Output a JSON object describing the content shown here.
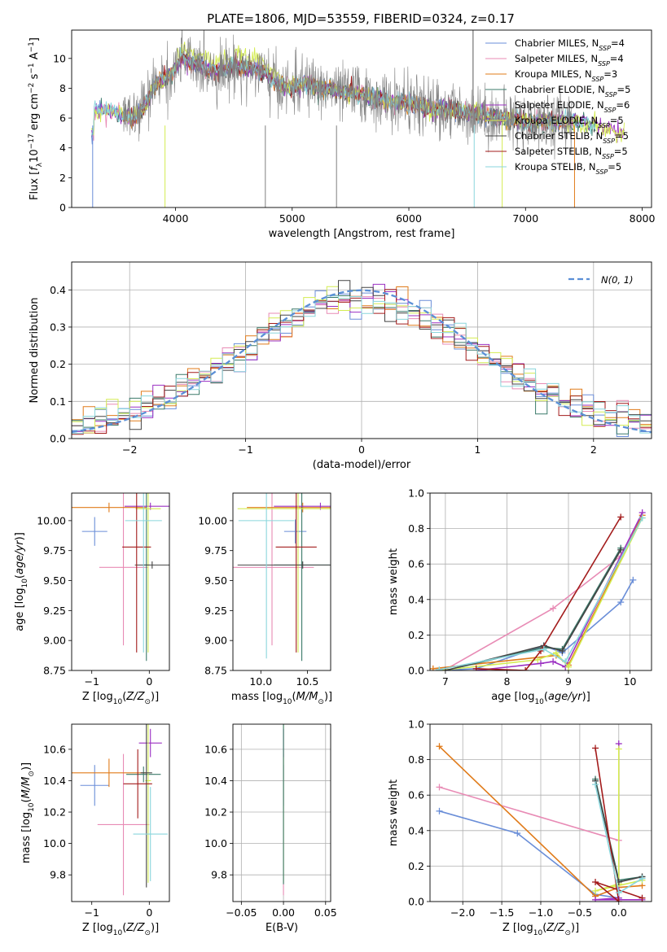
{
  "figure_title": "PLATE=1806, MJD=53559, FIBERID=0324, z=0.17",
  "chart_data": [
    {
      "id": "spectrum",
      "type": "line",
      "title": "PLATE=1806, MJD=53559, FIBERID=0324, z=0.17",
      "xlabel": "wavelength [Angstrom, rest frame]",
      "ylabel": "Flux [f_λ 10^-17 erg cm^-2 s^-1 A^-1]",
      "xlim": [
        3110,
        8080
      ],
      "ylim": [
        0,
        11.9
      ],
      "xticks": [
        4000,
        5000,
        6000,
        7000,
        8000
      ],
      "yticks": [
        0,
        2,
        4,
        6,
        8,
        10
      ],
      "grid": false,
      "legend_position": "top-right",
      "data_continuum": [
        [
          3300,
          6.6
        ],
        [
          3450,
          6.5
        ],
        [
          3550,
          6.2
        ],
        [
          3650,
          6.0
        ],
        [
          3750,
          7.0
        ],
        [
          3850,
          8.5
        ],
        [
          3950,
          8.8
        ],
        [
          4050,
          10.0
        ],
        [
          4150,
          9.6
        ],
        [
          4250,
          9.4
        ],
        [
          4350,
          9.1
        ],
        [
          4450,
          9.3
        ],
        [
          4550,
          9.5
        ],
        [
          4650,
          9.3
        ],
        [
          4750,
          9.1
        ],
        [
          4850,
          8.4
        ],
        [
          4950,
          8.0
        ],
        [
          5050,
          8.2
        ],
        [
          5150,
          8.3
        ],
        [
          5250,
          8.0
        ],
        [
          5350,
          7.9
        ],
        [
          5450,
          7.7
        ],
        [
          5550,
          7.7
        ],
        [
          5650,
          7.4
        ],
        [
          5750,
          7.3
        ],
        [
          5850,
          7.0
        ],
        [
          5950,
          7.1
        ],
        [
          6050,
          6.9
        ],
        [
          6150,
          6.7
        ],
        [
          6250,
          6.6
        ],
        [
          6350,
          6.5
        ],
        [
          6450,
          6.4
        ],
        [
          6550,
          6.4
        ],
        [
          6650,
          6.2
        ],
        [
          6750,
          6.0
        ],
        [
          6850,
          6.0
        ],
        [
          6950,
          5.8
        ],
        [
          7050,
          5.7
        ],
        [
          7150,
          5.8
        ],
        [
          7250,
          5.8
        ],
        [
          7400,
          5.8
        ],
        [
          7600,
          5.6
        ],
        [
          7800,
          4.9
        ]
      ],
      "series": [
        {
          "name": "Chabrier MILES, N_SSP=4",
          "label_main": "Chabrier MILES, N",
          "label_sub": "SSP",
          "label_tail": "=4",
          "color": "#6a8ed8"
        },
        {
          "name": "Salpeter MILES, N_SSP=4",
          "label_main": "Salpeter MILES, N",
          "label_sub": "SSP",
          "label_tail": "=4",
          "color": "#e88bb5"
        },
        {
          "name": "Kroupa MILES, N_SSP=3",
          "label_main": "Kroupa MILES, N",
          "label_sub": "SSP",
          "label_tail": "=3",
          "color": "#e07b1a"
        },
        {
          "name": "Chabrier ELODIE, N_SSP=5",
          "label_main": "Chabrier ELODIE, N",
          "label_sub": "SSP",
          "label_tail": "=5",
          "color": "#3b7a6a"
        },
        {
          "name": "Salpeter ELODIE, N_SSP=6",
          "label_main": "Salpeter ELODIE, N",
          "label_sub": "SSP",
          "label_tail": "=6",
          "color": "#9b30c2"
        },
        {
          "name": "Kroupa ELODIE, N_SSP=5",
          "label_main": "Kroupa ELODIE, N",
          "label_sub": "SSP",
          "label_tail": "=5",
          "color": "#d4ec52"
        },
        {
          "name": "Chabrier STELIB, N_SSP=5",
          "label_main": "Chabrier STELIB, N",
          "label_sub": "SSP",
          "label_tail": "=5",
          "color": "#444444"
        },
        {
          "name": "Salpeter STELIB, N_SSP=5",
          "label_main": "Salpeter STELIB, N",
          "label_sub": "SSP",
          "label_tail": "=5",
          "color": "#a31c1c"
        },
        {
          "name": "Kroupa STELIB, N_SSP=5",
          "label_main": "Kroupa STELIB, N",
          "label_sub": "SSP",
          "label_tail": "=5",
          "color": "#8ad6dc"
        }
      ]
    },
    {
      "id": "residuals",
      "type": "line",
      "xlabel": "(data-model)/error",
      "ylabel": "Normed distribution",
      "xlim": [
        -2.5,
        2.5
      ],
      "ylim": [
        0,
        0.475
      ],
      "xticks": [
        -2,
        -1,
        0,
        1,
        2
      ],
      "yticks": [
        0.0,
        0.1,
        0.2,
        0.3,
        0.4
      ],
      "grid": true,
      "legend_position": "top-right",
      "legend_label": "N(0, 1)",
      "bin_width": 0.1,
      "hist_colors": [
        "#6a8ed8",
        "#e88bb5",
        "#e07b1a",
        "#3b7a6a",
        "#9b30c2",
        "#d4ec52",
        "#444444",
        "#a31c1c",
        "#8ad6dc"
      ]
    },
    {
      "id": "age_vs_Z",
      "type": "scatter",
      "xlabel": "Z [log10(Z/Z⊙)]",
      "ylabel": "age [log10(age/yr)]",
      "xlim": [
        -1.35,
        0.35
      ],
      "ylim": [
        8.75,
        10.23
      ],
      "xticks": [
        -1,
        0
      ],
      "yticks": [
        8.75,
        9.0,
        9.25,
        9.5,
        9.75,
        10.0
      ],
      "grid": false,
      "points": [
        {
          "c": 0,
          "x": -0.95,
          "y": 9.91,
          "xerr": 0.22,
          "yerr": 0.12
        },
        {
          "c": 1,
          "x": -0.45,
          "y": 9.61,
          "xerr": 0.42,
          "yerr": 0.65
        },
        {
          "c": 2,
          "x": -0.7,
          "y": 10.11,
          "xerr": 0.65,
          "yerr": 0.04
        },
        {
          "c": 3,
          "x": -0.05,
          "y": 9.63,
          "xerr": 0.05,
          "yerr": 0.8
        },
        {
          "c": 4,
          "x": 0.02,
          "y": 10.12,
          "xerr": 0.45,
          "yerr": 0.03
        },
        {
          "c": 5,
          "x": -0.02,
          "y": 10.1,
          "xerr": 0.22,
          "yerr": 1.2
        },
        {
          "c": 6,
          "x": 0.05,
          "y": 9.63,
          "xerr": 0.3,
          "yerr": 0.03
        },
        {
          "c": 7,
          "x": -0.22,
          "y": 9.78,
          "xerr": 0.25,
          "yerr": 0.88
        },
        {
          "c": 8,
          "x": -0.1,
          "y": 10.0,
          "xerr": 0.32,
          "yerr": 1.1
        }
      ]
    },
    {
      "id": "age_vs_mass",
      "type": "scatter",
      "xlabel": "mass [log10(M/M⊙)]",
      "ylabel": "",
      "xlim": [
        9.7,
        10.75
      ],
      "ylim": [
        8.75,
        10.23
      ],
      "xticks": [
        10.0,
        10.5
      ],
      "yticks": [
        8.75,
        9.0,
        9.25,
        9.5,
        9.75,
        10.0
      ],
      "grid": false,
      "points": [
        {
          "c": 0,
          "x": 10.37,
          "y": 9.91,
          "xerr": 0.12,
          "yerr": 0.1
        },
        {
          "c": 1,
          "x": 10.12,
          "y": 9.61,
          "xerr": 0.45,
          "yerr": 0.65
        },
        {
          "c": 2,
          "x": 10.45,
          "y": 10.11,
          "xerr": 0.6,
          "yerr": 0.04
        },
        {
          "c": 3,
          "x": 10.44,
          "y": 9.63,
          "xerr": 0.3,
          "yerr": 0.8
        },
        {
          "c": 4,
          "x": 10.64,
          "y": 10.12,
          "xerr": 0.5,
          "yerr": 0.03
        },
        {
          "c": 5,
          "x": 10.4,
          "y": 10.1,
          "xerr": 0.65,
          "yerr": 1.2
        },
        {
          "c": 6,
          "x": 10.45,
          "y": 9.63,
          "xerr": 0.7,
          "yerr": 0.03
        },
        {
          "c": 7,
          "x": 10.38,
          "y": 9.78,
          "xerr": 0.22,
          "yerr": 0.88
        },
        {
          "c": 8,
          "x": 10.06,
          "y": 10.0,
          "xerr": 0.3,
          "yerr": 1.15
        }
      ]
    },
    {
      "id": "weight_vs_age",
      "type": "line",
      "xlabel": "age [log10(age/yr)]",
      "ylabel": "mass weight",
      "xlim": [
        6.75,
        10.35
      ],
      "ylim": [
        0,
        1.0
      ],
      "xticks": [
        7,
        8,
        9,
        10
      ],
      "yticks": [
        0.0,
        0.2,
        0.4,
        0.6,
        0.8,
        1.0
      ],
      "grid": true,
      "series": [
        {
          "c": 0,
          "x": [
            6.9,
            7.5,
            8.6,
            8.9,
            9.85,
            10.05
          ],
          "y": [
            0.0,
            0.01,
            0.14,
            0.1,
            0.385,
            0.51
          ]
        },
        {
          "c": 1,
          "x": [
            7.0,
            8.75,
            9.85
          ],
          "y": [
            0.005,
            0.35,
            0.645
          ]
        },
        {
          "c": 2,
          "x": [
            6.8,
            8.8,
            9.0,
            10.2
          ],
          "y": [
            0.01,
            0.085,
            0.03,
            0.875
          ]
        },
        {
          "c": 3,
          "x": [
            7.0,
            8.6,
            8.9,
            9.85
          ],
          "y": [
            0.0,
            0.13,
            0.12,
            0.69
          ]
        },
        {
          "c": 4,
          "x": [
            7.5,
            8.55,
            8.75,
            8.95,
            10.2
          ],
          "y": [
            0.0,
            0.04,
            0.05,
            0.02,
            0.89
          ]
        },
        {
          "c": 5,
          "x": [
            6.9,
            8.5,
            8.8,
            9.0,
            10.2
          ],
          "y": [
            0.0,
            0.06,
            0.1,
            0.02,
            0.86
          ]
        },
        {
          "c": 6,
          "x": [
            7.0,
            8.6,
            8.9,
            9.85
          ],
          "y": [
            0.0,
            0.14,
            0.11,
            0.68
          ]
        },
        {
          "c": 7,
          "x": [
            7.5,
            8.3,
            8.55,
            9.85
          ],
          "y": [
            0.01,
            0.0,
            0.11,
            0.865
          ]
        },
        {
          "c": 8,
          "x": [
            6.9,
            8.6,
            8.95,
            10.2
          ],
          "y": [
            0.005,
            0.12,
            0.05,
            0.86
          ]
        }
      ]
    },
    {
      "id": "mass_vs_Z",
      "type": "scatter",
      "xlabel": "Z [log10(Z/Z⊙)]",
      "ylabel": "mass [log10(M/M⊙)]",
      "xlim": [
        -1.35,
        0.35
      ],
      "ylim": [
        9.63,
        10.76
      ],
      "xticks": [
        -1,
        0
      ],
      "yticks": [
        9.8,
        10.0,
        10.2,
        10.4,
        10.6
      ],
      "grid": false,
      "points": [
        {
          "c": 0,
          "x": -0.95,
          "y": 10.37,
          "xerr": 0.25,
          "yerr": 0.13
        },
        {
          "c": 1,
          "x": -0.45,
          "y": 10.12,
          "xerr": 0.45,
          "yerr": 0.45
        },
        {
          "c": 2,
          "x": -0.7,
          "y": 10.45,
          "xerr": 0.65,
          "yerr": 0.09
        },
        {
          "c": 3,
          "x": -0.1,
          "y": 10.44,
          "xerr": 0.3,
          "yerr": 0.05
        },
        {
          "c": 4,
          "x": 0.02,
          "y": 10.64,
          "xerr": 0.2,
          "yerr": 0.09
        },
        {
          "c": 5,
          "x": -0.02,
          "y": 10.4,
          "xerr": 0.05,
          "yerr": 0.65
        },
        {
          "c": 6,
          "x": -0.05,
          "y": 10.45,
          "xerr": 0.1,
          "yerr": 0.73
        },
        {
          "c": 7,
          "x": -0.2,
          "y": 10.38,
          "xerr": 0.25,
          "yerr": 0.22
        },
        {
          "c": 8,
          "x": 0.02,
          "y": 10.06,
          "xerr": 0.3,
          "yerr": 0.3
        }
      ]
    },
    {
      "id": "mass_vs_EBV",
      "type": "scatter",
      "xlabel": "E(B-V)",
      "ylabel": "",
      "xlim": [
        -0.06,
        0.056
      ],
      "ylim": [
        9.63,
        10.76
      ],
      "xticks": [
        -0.05,
        0.0,
        0.05
      ],
      "yticks": [
        9.8,
        10.0,
        10.2,
        10.4,
        10.6
      ],
      "grid": true,
      "points": [
        {
          "c": 0,
          "x": 0.0,
          "y": 10.37,
          "xerr": 0.0,
          "yerr": 0.13
        },
        {
          "c": 1,
          "x": 0.0,
          "y": 10.12,
          "xerr": 0.0,
          "yerr": 0.45
        },
        {
          "c": 5,
          "x": 0.0,
          "y": 10.4,
          "xerr": 0.0,
          "yerr": 0.65
        },
        {
          "c": 4,
          "x": 0.0,
          "y": 10.64,
          "xerr": 0.0,
          "yerr": 0.09
        },
        {
          "c": 3,
          "x": 0.0,
          "y": 10.44,
          "xerr": 0.0,
          "yerr": 0.7
        }
      ]
    },
    {
      "id": "weight_vs_Z",
      "type": "line",
      "xlabel": "Z [log10(Z/Z⊙)]",
      "ylabel": "mass weight",
      "xlim": [
        -2.42,
        0.42
      ],
      "ylim": [
        0,
        1.0
      ],
      "xticks": [
        -2.0,
        -1.5,
        -1.0,
        -0.5,
        0.0
      ],
      "yticks": [
        0.0,
        0.2,
        0.4,
        0.6,
        0.8,
        1.0
      ],
      "grid": true,
      "series": [
        {
          "c": 0,
          "x": [
            -2.3,
            -1.3,
            -0.3,
            0.0
          ],
          "y": [
            0.51,
            0.385,
            0.04,
            0.02
          ]
        },
        {
          "c": 1,
          "x": [
            -2.3,
            0.0
          ],
          "y": [
            0.645,
            0.345
          ]
        },
        {
          "c": 2,
          "x": [
            -2.3,
            -0.3,
            0.0,
            0.3
          ],
          "y": [
            0.875,
            0.03,
            0.08,
            0.09
          ]
        },
        {
          "c": 3,
          "x": [
            -0.3,
            0.0,
            0.3
          ],
          "y": [
            0.69,
            0.12,
            0.14
          ]
        },
        {
          "c": 4,
          "x": [
            0.0,
            0.0,
            -0.3,
            0.3
          ],
          "y": [
            0.89,
            0.02,
            0.01,
            0.01
          ]
        },
        {
          "c": 5,
          "x": [
            0.0,
            0.0,
            -0.3,
            0.3
          ],
          "y": [
            0.86,
            0.1,
            0.06,
            0.12
          ]
        },
        {
          "c": 6,
          "x": [
            -0.3,
            0.0,
            0.3
          ],
          "y": [
            0.68,
            0.11,
            0.14
          ]
        },
        {
          "c": 7,
          "x": [
            -0.3,
            0.0,
            -0.3,
            0.3
          ],
          "y": [
            0.865,
            0.0,
            0.11,
            0.02
          ]
        },
        {
          "c": 8,
          "x": [
            -0.3,
            0.0,
            0.3
          ],
          "y": [
            0.66,
            0.05,
            0.13
          ]
        }
      ]
    }
  ]
}
